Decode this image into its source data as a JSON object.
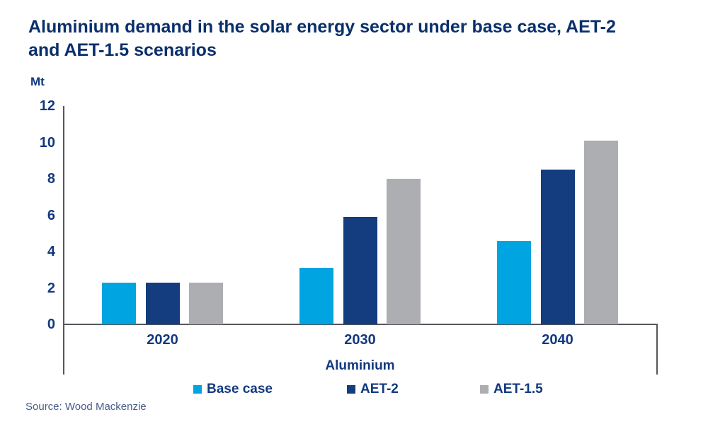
{
  "source": "Source: Wood Mackenzie",
  "colors": {
    "title_text": "#0A2F6B",
    "axis_text": "#123980",
    "axis_line": "#55565A",
    "source_text": "#475A89"
  },
  "chart_data": {
    "type": "bar",
    "title": "Aluminium demand in the solar energy sector under base case, AET-2 and AET-1.5 scenarios",
    "ylabel": "Mt",
    "xlabel": "Aluminium",
    "categories": [
      "2020",
      "2030",
      "2040"
    ],
    "series": [
      {
        "name": "Base case",
        "color": "#00A4E0",
        "values": [
          2.3,
          3.1,
          4.6
        ]
      },
      {
        "name": "AET-2",
        "color": "#133D7E",
        "values": [
          2.3,
          5.9,
          8.5
        ]
      },
      {
        "name": "AET-1.5",
        "color": "#ACAEB1",
        "values": [
          2.3,
          8.0,
          10.1
        ]
      }
    ],
    "ylim": [
      0,
      12
    ],
    "yticks": [
      0,
      2,
      4,
      6,
      8,
      10,
      12
    ],
    "grid": false,
    "legend_position": "bottom"
  }
}
